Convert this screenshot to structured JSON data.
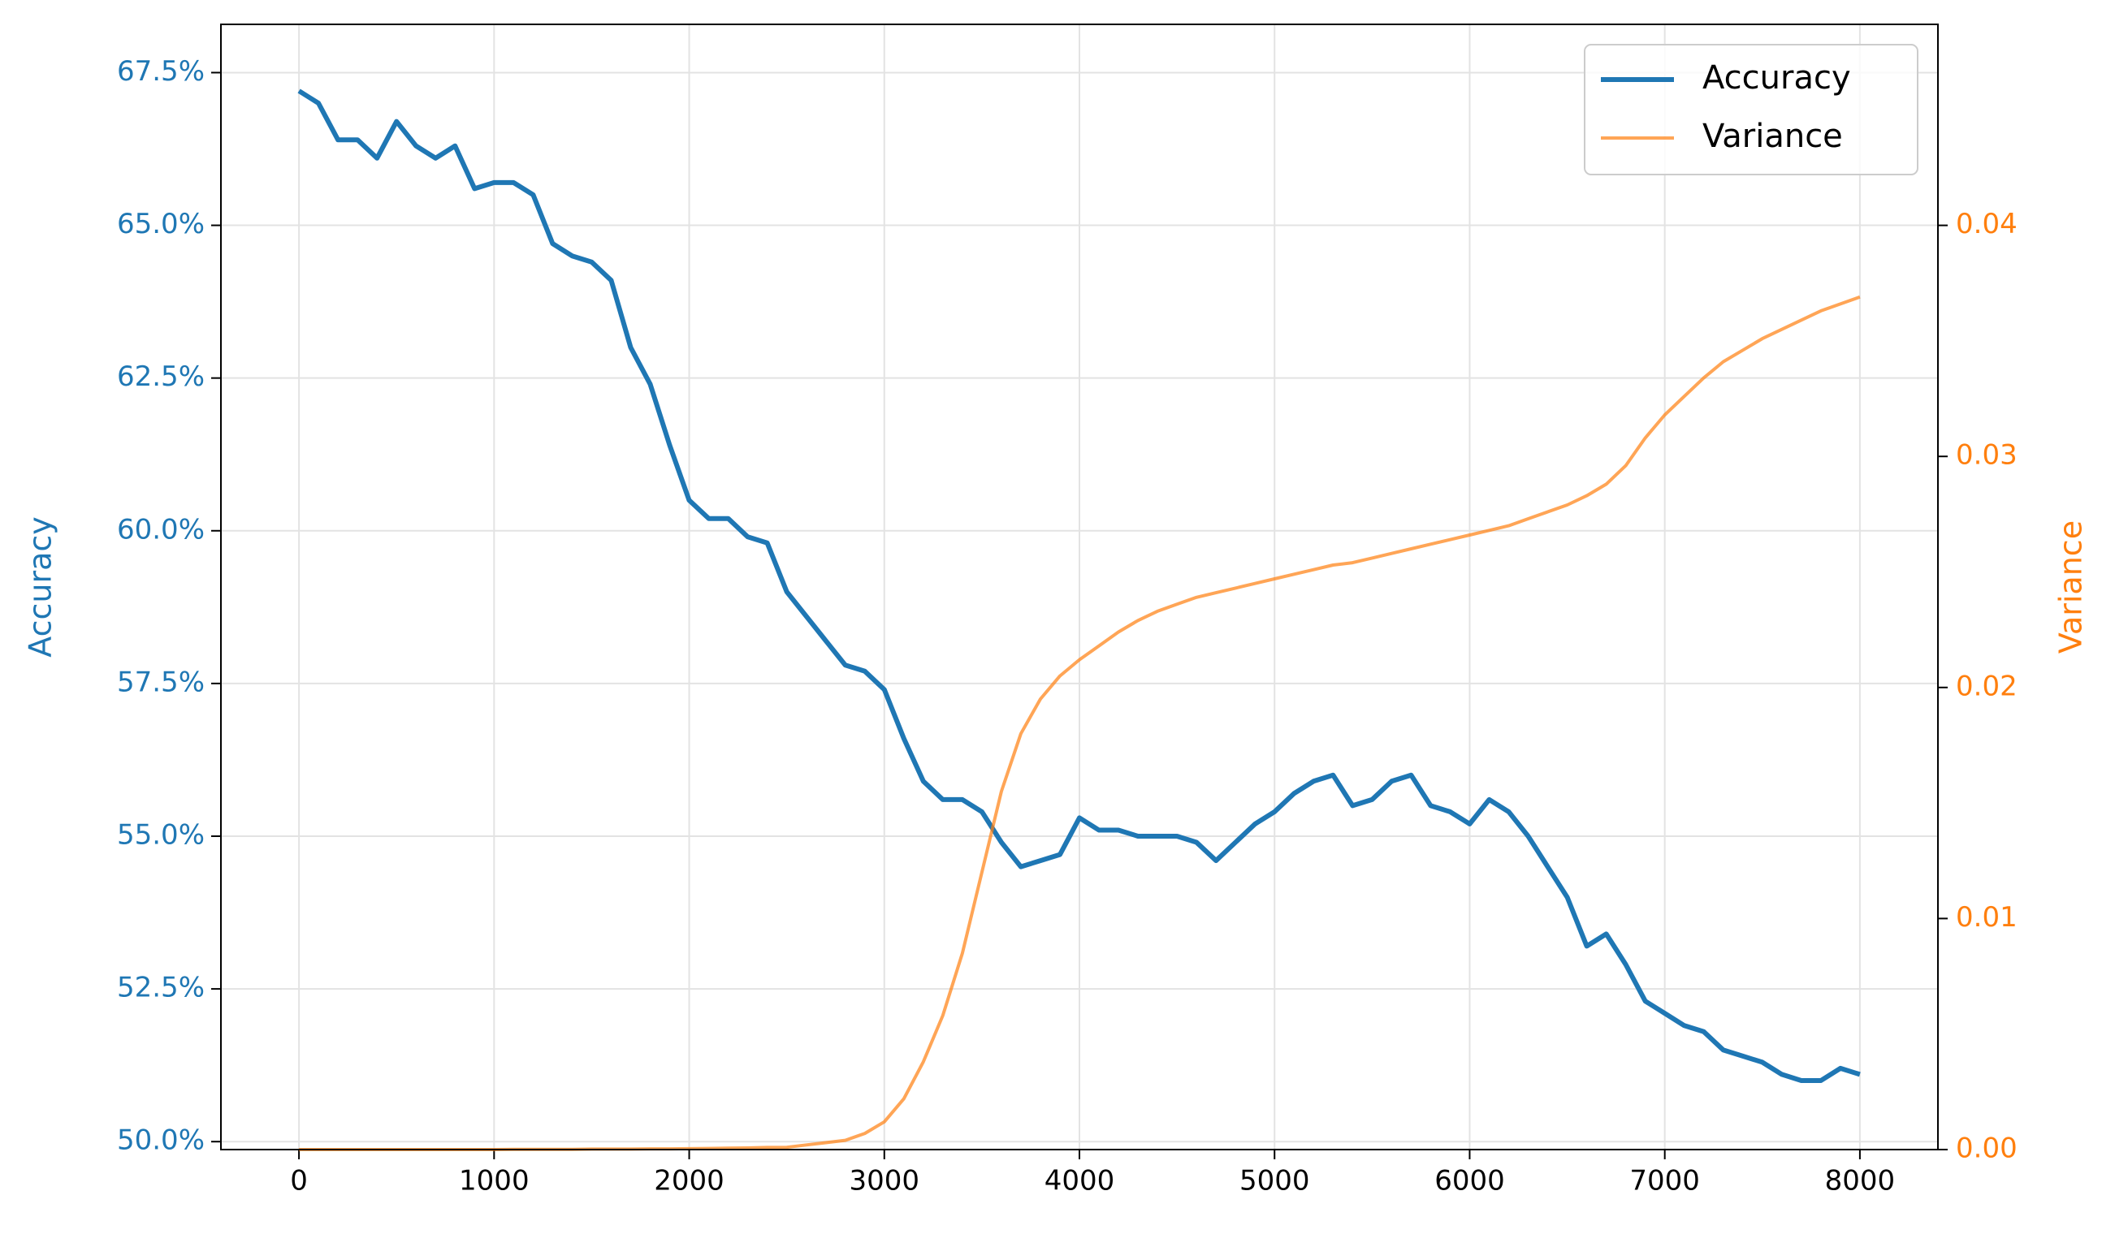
{
  "chart_data": {
    "type": "line",
    "x": [
      0,
      100,
      200,
      300,
      400,
      500,
      600,
      700,
      800,
      900,
      1000,
      1100,
      1200,
      1300,
      1400,
      1500,
      1600,
      1700,
      1800,
      1900,
      2000,
      2100,
      2200,
      2300,
      2400,
      2500,
      2600,
      2700,
      2800,
      2900,
      3000,
      3100,
      3200,
      3300,
      3400,
      3500,
      3600,
      3700,
      3800,
      3900,
      4000,
      4100,
      4200,
      4300,
      4400,
      4500,
      4600,
      4700,
      4800,
      4900,
      5000,
      5100,
      5200,
      5300,
      5400,
      5500,
      5600,
      5700,
      5800,
      5900,
      6000,
      6100,
      6200,
      6300,
      6400,
      6500,
      6600,
      6700,
      6800,
      6900,
      7000,
      7100,
      7200,
      7300,
      7400,
      7500,
      7600,
      7700,
      7800,
      7900,
      8000
    ],
    "series": [
      {
        "name": "Accuracy",
        "color": "#1f77b4",
        "axis": "y",
        "values": [
          67.2,
          67.0,
          66.4,
          66.4,
          66.1,
          66.7,
          66.3,
          66.1,
          66.3,
          65.6,
          65.7,
          65.7,
          65.5,
          64.7,
          64.5,
          64.4,
          64.1,
          63.0,
          62.4,
          61.4,
          60.5,
          60.2,
          60.2,
          59.9,
          59.8,
          59.0,
          58.6,
          58.2,
          57.8,
          57.7,
          57.4,
          56.6,
          55.9,
          55.6,
          55.6,
          55.4,
          54.9,
          54.5,
          54.6,
          54.7,
          55.3,
          55.1,
          55.1,
          55.0,
          55.0,
          55.0,
          54.9,
          54.6,
          54.9,
          55.2,
          55.4,
          55.7,
          55.9,
          56.0,
          55.5,
          55.6,
          55.9,
          56.0,
          55.5,
          55.4,
          55.2,
          55.6,
          55.4,
          55.0,
          54.5,
          54.0,
          53.2,
          53.4,
          52.9,
          52.3,
          52.1,
          51.9,
          51.8,
          51.5,
          51.4,
          51.3,
          51.1,
          51.0,
          51.0,
          51.2,
          51.1
        ]
      },
      {
        "name": "Variance",
        "color": "#ff7f0e",
        "axis": "y2",
        "values": [
          0,
          0,
          0,
          0,
          0,
          0,
          0,
          0,
          0,
          0,
          0,
          1e-05,
          1e-05,
          1e-05,
          1e-05,
          2e-05,
          2e-05,
          2e-05,
          3e-05,
          3e-05,
          4e-05,
          5e-05,
          6e-05,
          7e-05,
          9e-05,
          0.0001,
          0.0002,
          0.0003,
          0.0004,
          0.0007,
          0.0012,
          0.0022,
          0.0038,
          0.0058,
          0.0085,
          0.012,
          0.0155,
          0.018,
          0.0195,
          0.0205,
          0.0212,
          0.0218,
          0.0224,
          0.0229,
          0.0233,
          0.0236,
          0.0239,
          0.0241,
          0.0243,
          0.0245,
          0.0247,
          0.0249,
          0.0251,
          0.0253,
          0.0254,
          0.0256,
          0.0258,
          0.026,
          0.0262,
          0.0264,
          0.0266,
          0.0268,
          0.027,
          0.0273,
          0.0276,
          0.0279,
          0.0283,
          0.0288,
          0.0296,
          0.0308,
          0.0318,
          0.0326,
          0.0334,
          0.0341,
          0.0346,
          0.0351,
          0.0355,
          0.0359,
          0.0363,
          0.0366,
          0.0369
        ]
      }
    ],
    "ylabel": "Accuracy",
    "y2label": "Variance",
    "xlim": [
      -400,
      8400
    ],
    "xticks": [
      0,
      1000,
      2000,
      3000,
      4000,
      5000,
      6000,
      7000,
      8000
    ],
    "ylim": [
      49.87,
      68.29
    ],
    "yticks": [
      {
        "value": 50,
        "label": "50.0%"
      },
      {
        "value": 52.5,
        "label": "52.5%"
      },
      {
        "value": 55,
        "label": "55.0%"
      },
      {
        "value": 57.5,
        "label": "57.5%"
      },
      {
        "value": 60,
        "label": "60.0%"
      },
      {
        "value": 62.5,
        "label": "62.5%"
      },
      {
        "value": 65,
        "label": "65.0%"
      },
      {
        "value": 67.5,
        "label": "67.5%"
      }
    ],
    "y2lim": [
      0,
      0.0487
    ],
    "y2ticks": [
      {
        "value": 0,
        "label": "0.00"
      },
      0.01,
      0.02,
      0.03,
      0.04
    ],
    "grid": true,
    "legend": "upper right"
  }
}
